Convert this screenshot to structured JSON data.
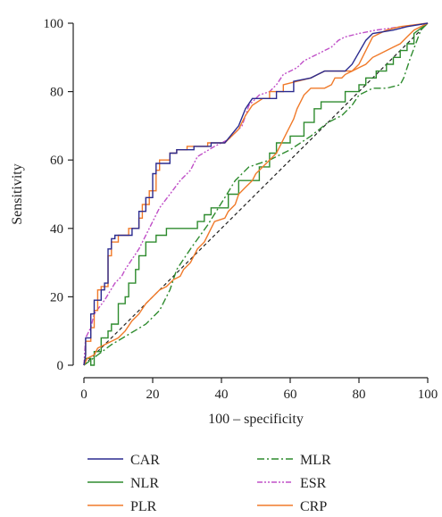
{
  "chart_data": {
    "type": "line",
    "title": "",
    "xlabel": "100 – specificity",
    "ylabel": "Sensitivity",
    "xlim": [
      0,
      100
    ],
    "ylim": [
      0,
      100
    ],
    "x_ticks": [
      0,
      20,
      40,
      60,
      80,
      100
    ],
    "y_ticks": [
      0,
      20,
      40,
      60,
      80,
      100
    ],
    "grid": false,
    "legend_position": "bottom",
    "reference_line": {
      "from": [
        0,
        0
      ],
      "to": [
        100,
        100
      ],
      "style": "dashed",
      "color": "#222222"
    },
    "series": [
      {
        "name": "CAR",
        "color": "#2b2b8f",
        "dash": "",
        "points": [
          [
            0,
            0
          ],
          [
            0.5,
            3
          ],
          [
            0.5,
            8
          ],
          [
            2,
            8
          ],
          [
            2,
            15
          ],
          [
            3,
            15
          ],
          [
            3,
            19
          ],
          [
            5,
            19
          ],
          [
            5,
            22
          ],
          [
            6,
            22
          ],
          [
            6,
            24
          ],
          [
            7,
            24
          ],
          [
            7,
            34
          ],
          [
            8,
            34
          ],
          [
            8,
            37
          ],
          [
            9,
            37
          ],
          [
            9,
            38
          ],
          [
            14,
            38
          ],
          [
            14,
            40
          ],
          [
            16,
            40
          ],
          [
            16,
            45
          ],
          [
            18,
            45
          ],
          [
            18,
            49
          ],
          [
            20,
            49
          ],
          [
            20,
            56
          ],
          [
            21,
            56
          ],
          [
            21,
            59
          ],
          [
            25,
            59
          ],
          [
            25,
            62
          ],
          [
            27,
            62
          ],
          [
            27,
            63
          ],
          [
            32,
            63
          ],
          [
            32,
            64
          ],
          [
            37,
            64
          ],
          [
            37,
            65
          ],
          [
            41,
            65
          ],
          [
            45,
            70
          ],
          [
            47,
            75
          ],
          [
            49,
            78
          ],
          [
            56,
            78
          ],
          [
            56,
            80
          ],
          [
            61,
            80
          ],
          [
            61,
            83
          ],
          [
            66,
            84
          ],
          [
            68,
            85
          ],
          [
            70,
            86
          ],
          [
            76,
            86
          ],
          [
            78,
            88
          ],
          [
            82,
            95
          ],
          [
            84,
            97
          ],
          [
            90,
            98
          ],
          [
            94,
            99
          ],
          [
            100,
            100
          ]
        ]
      },
      {
        "name": "NLR",
        "color": "#2e8b2e",
        "dash": "",
        "points": [
          [
            0,
            0
          ],
          [
            0.5,
            2
          ],
          [
            2,
            2
          ],
          [
            2,
            0
          ],
          [
            3,
            0
          ],
          [
            3,
            4
          ],
          [
            5,
            4
          ],
          [
            5,
            8
          ],
          [
            7,
            8
          ],
          [
            7,
            10
          ],
          [
            8,
            10
          ],
          [
            8,
            12
          ],
          [
            10,
            12
          ],
          [
            10,
            18
          ],
          [
            12,
            18
          ],
          [
            12,
            20
          ],
          [
            13,
            20
          ],
          [
            13,
            24
          ],
          [
            15,
            24
          ],
          [
            15,
            28
          ],
          [
            16,
            28
          ],
          [
            16,
            32
          ],
          [
            18,
            32
          ],
          [
            18,
            36
          ],
          [
            21,
            36
          ],
          [
            21,
            38
          ],
          [
            24,
            38
          ],
          [
            24,
            40
          ],
          [
            33,
            40
          ],
          [
            33,
            42
          ],
          [
            35,
            42
          ],
          [
            35,
            44
          ],
          [
            37,
            44
          ],
          [
            37,
            46
          ],
          [
            42,
            46
          ],
          [
            42,
            50
          ],
          [
            45,
            50
          ],
          [
            45,
            54
          ],
          [
            51,
            54
          ],
          [
            51,
            58
          ],
          [
            54,
            58
          ],
          [
            54,
            62
          ],
          [
            56,
            62
          ],
          [
            56,
            65
          ],
          [
            60,
            65
          ],
          [
            60,
            67
          ],
          [
            64,
            67
          ],
          [
            64,
            71
          ],
          [
            67,
            71
          ],
          [
            67,
            75
          ],
          [
            69,
            75
          ],
          [
            69,
            77
          ],
          [
            76,
            77
          ],
          [
            76,
            80
          ],
          [
            80,
            80
          ],
          [
            80,
            82
          ],
          [
            82,
            82
          ],
          [
            82,
            84
          ],
          [
            85,
            84
          ],
          [
            85,
            86
          ],
          [
            88,
            86
          ],
          [
            88,
            88
          ],
          [
            90,
            88
          ],
          [
            90,
            90
          ],
          [
            92,
            90
          ],
          [
            92,
            92
          ],
          [
            94,
            92
          ],
          [
            94,
            94
          ],
          [
            96,
            94
          ],
          [
            96,
            97
          ],
          [
            100,
            100
          ]
        ]
      },
      {
        "name": "PLR",
        "color": "#f07a2a",
        "dash": "",
        "points": [
          [
            0,
            0
          ],
          [
            0.5,
            3
          ],
          [
            0.5,
            7
          ],
          [
            2,
            7
          ],
          [
            2,
            11
          ],
          [
            3,
            11
          ],
          [
            3,
            16
          ],
          [
            4,
            16
          ],
          [
            4,
            22
          ],
          [
            5,
            22
          ],
          [
            5,
            23
          ],
          [
            7,
            23
          ],
          [
            7,
            32
          ],
          [
            8,
            32
          ],
          [
            8,
            36
          ],
          [
            10,
            36
          ],
          [
            10,
            38
          ],
          [
            13,
            38
          ],
          [
            13,
            40
          ],
          [
            16,
            40
          ],
          [
            16,
            43
          ],
          [
            17,
            43
          ],
          [
            17,
            47
          ],
          [
            19,
            47
          ],
          [
            19,
            51
          ],
          [
            21,
            51
          ],
          [
            21,
            57
          ],
          [
            22,
            57
          ],
          [
            22,
            60
          ],
          [
            25,
            60
          ],
          [
            25,
            62
          ],
          [
            27,
            62
          ],
          [
            27,
            63
          ],
          [
            30,
            63
          ],
          [
            30,
            64
          ],
          [
            36,
            64
          ],
          [
            36,
            65
          ],
          [
            41,
            65
          ],
          [
            45,
            69
          ],
          [
            47,
            73
          ],
          [
            49,
            76
          ],
          [
            52,
            78
          ],
          [
            54,
            78
          ],
          [
            54,
            80
          ],
          [
            58,
            80
          ],
          [
            58,
            82
          ],
          [
            62,
            83
          ],
          [
            66,
            84
          ],
          [
            70,
            86
          ],
          [
            78,
            86
          ],
          [
            80,
            88
          ],
          [
            84,
            96
          ],
          [
            88,
            98
          ],
          [
            92,
            99
          ],
          [
            100,
            100
          ]
        ]
      },
      {
        "name": "MLR",
        "color": "#2e8b2e",
        "dash": "8 3 2 3",
        "points": [
          [
            0,
            0
          ],
          [
            4,
            3
          ],
          [
            8,
            6
          ],
          [
            13,
            9
          ],
          [
            18,
            12
          ],
          [
            22,
            16
          ],
          [
            25,
            22
          ],
          [
            27,
            28
          ],
          [
            31,
            34
          ],
          [
            36,
            41
          ],
          [
            41,
            49
          ],
          [
            44,
            54
          ],
          [
            48,
            58
          ],
          [
            54,
            60
          ],
          [
            60,
            63
          ],
          [
            66,
            67
          ],
          [
            71,
            71
          ],
          [
            75,
            73
          ],
          [
            78,
            76
          ],
          [
            80,
            79
          ],
          [
            84,
            81
          ],
          [
            88,
            81
          ],
          [
            92,
            82
          ],
          [
            93,
            84
          ],
          [
            95,
            90
          ],
          [
            98,
            98
          ],
          [
            100,
            100
          ]
        ]
      },
      {
        "name": "ESR",
        "color": "#c050c8",
        "dash": "6 2 2 2 2 2",
        "points": [
          [
            0,
            0
          ],
          [
            0.5,
            8
          ],
          [
            2,
            11
          ],
          [
            3,
            15
          ],
          [
            6,
            19
          ],
          [
            9,
            24
          ],
          [
            11,
            26
          ],
          [
            12,
            28
          ],
          [
            14,
            31
          ],
          [
            16,
            34
          ],
          [
            18,
            38
          ],
          [
            20,
            42
          ],
          [
            22,
            46
          ],
          [
            25,
            50
          ],
          [
            28,
            54
          ],
          [
            31,
            57
          ],
          [
            33,
            61
          ],
          [
            38,
            64
          ],
          [
            42,
            66
          ],
          [
            46,
            70
          ],
          [
            48,
            76
          ],
          [
            51,
            79
          ],
          [
            54,
            80
          ],
          [
            56,
            82
          ],
          [
            58,
            85
          ],
          [
            62,
            87
          ],
          [
            64,
            89
          ],
          [
            66,
            90
          ],
          [
            68,
            91
          ],
          [
            70,
            92
          ],
          [
            72,
            93
          ],
          [
            74,
            95
          ],
          [
            76,
            96
          ],
          [
            80,
            97
          ],
          [
            85,
            98
          ],
          [
            100,
            100
          ]
        ]
      },
      {
        "name": "CRP",
        "color": "#f07a2a",
        "dash": "",
        "points": [
          [
            0,
            0
          ],
          [
            1,
            2
          ],
          [
            3,
            3
          ],
          [
            4,
            5
          ],
          [
            6,
            6
          ],
          [
            8,
            7
          ],
          [
            10,
            8
          ],
          [
            12,
            10
          ],
          [
            14,
            13
          ],
          [
            16,
            15
          ],
          [
            18,
            18
          ],
          [
            20,
            20
          ],
          [
            22,
            22
          ],
          [
            24,
            23
          ],
          [
            26,
            25
          ],
          [
            28,
            26
          ],
          [
            29,
            28
          ],
          [
            31,
            30
          ],
          [
            32,
            32
          ],
          [
            33,
            34
          ],
          [
            35,
            36
          ],
          [
            36,
            38
          ],
          [
            37,
            40
          ],
          [
            38,
            42
          ],
          [
            41,
            43
          ],
          [
            42,
            45
          ],
          [
            44,
            47
          ],
          [
            45,
            50
          ],
          [
            47,
            52
          ],
          [
            49,
            54
          ],
          [
            50,
            56
          ],
          [
            52,
            58
          ],
          [
            54,
            60
          ],
          [
            56,
            62
          ],
          [
            57,
            64
          ],
          [
            58,
            66
          ],
          [
            59,
            68
          ],
          [
            60,
            70
          ],
          [
            61,
            72
          ],
          [
            62,
            75
          ],
          [
            63,
            77
          ],
          [
            64,
            79
          ],
          [
            65,
            80
          ],
          [
            66,
            81
          ],
          [
            70,
            81
          ],
          [
            72,
            82
          ],
          [
            73,
            84
          ],
          [
            75,
            84
          ],
          [
            76,
            85
          ],
          [
            78,
            86
          ],
          [
            80,
            87
          ],
          [
            82,
            88
          ],
          [
            84,
            90
          ],
          [
            86,
            91
          ],
          [
            88,
            92
          ],
          [
            90,
            93
          ],
          [
            92,
            94
          ],
          [
            94,
            96
          ],
          [
            96,
            98
          ],
          [
            100,
            100
          ]
        ]
      }
    ]
  }
}
